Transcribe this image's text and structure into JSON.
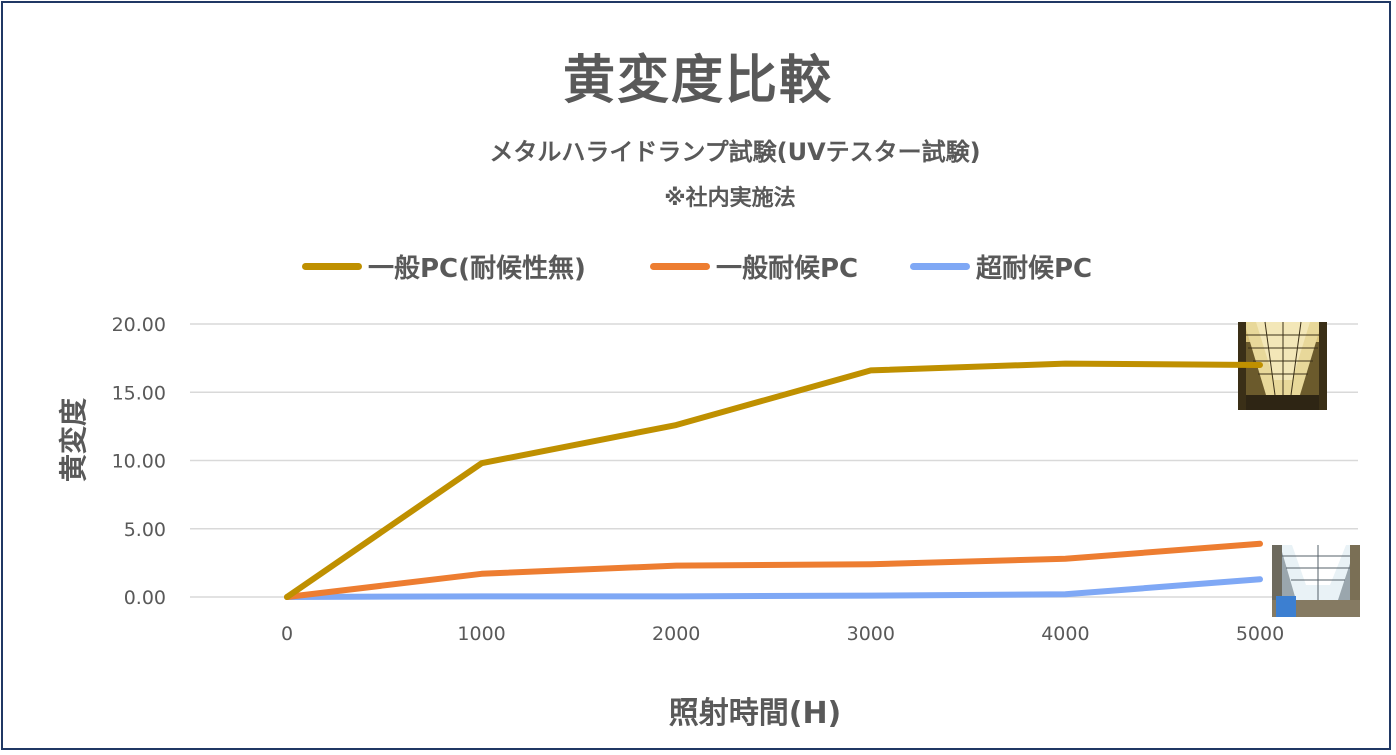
{
  "chart_data": {
    "type": "line",
    "title": "黄変度比較",
    "subtitle": "メタルハライドランプ試験(UVテスター試験)",
    "note": "※社内実施法",
    "xlabel": "照射時間(H)",
    "ylabel": "黄変度",
    "x": [
      0,
      1000,
      2000,
      3000,
      4000,
      5000
    ],
    "x_tick_labels": [
      "0",
      "1000",
      "2000",
      "3000",
      "4000",
      "5000"
    ],
    "y_tick_labels": [
      "0.00",
      "5.00",
      "10.00",
      "15.00",
      "20.00"
    ],
    "ylim": [
      0,
      20
    ],
    "grid": "horizontal",
    "legend_position": "top",
    "series": [
      {
        "name": "一般PC(耐候性無)",
        "color": "#BF9000",
        "values": [
          0,
          9.8,
          12.6,
          16.6,
          17.1,
          17.0
        ]
      },
      {
        "name": "一般耐候PC",
        "color": "#ED7D31",
        "values": [
          0,
          1.7,
          2.3,
          2.4,
          2.8,
          3.9
        ]
      },
      {
        "name": "超耐候PC",
        "color": "#7FA8F5",
        "values": [
          0,
          0.05,
          0.05,
          0.1,
          0.2,
          1.3
        ]
      }
    ]
  }
}
